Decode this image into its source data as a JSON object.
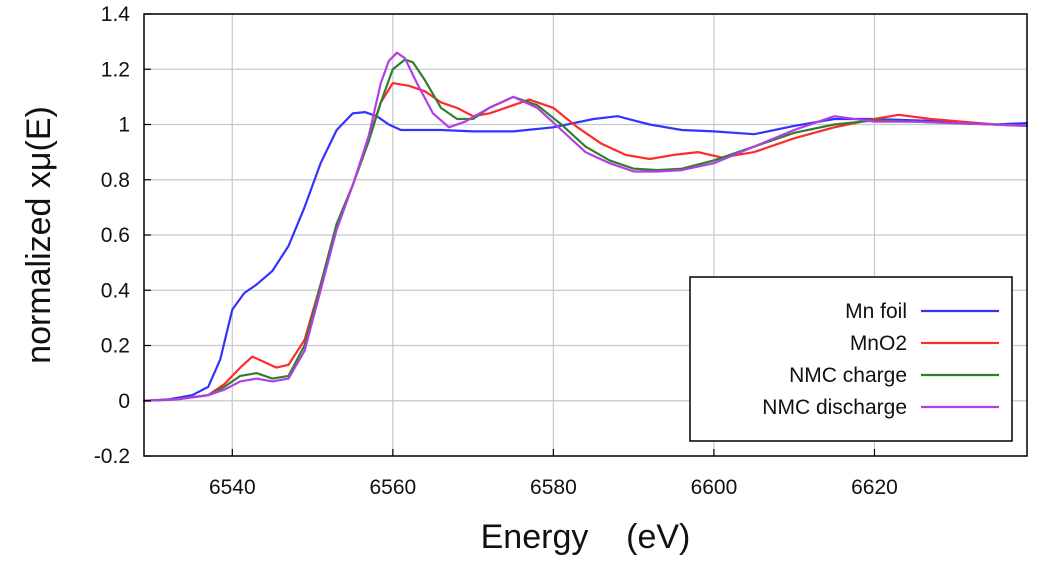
{
  "chart_data": {
    "type": "line",
    "xlabel": "Energy    (eV)",
    "ylabel": "normalized xμ(E)",
    "xlim": [
      6529,
      6639
    ],
    "ylim": [
      -0.2,
      1.4
    ],
    "xticks": [
      6540,
      6560,
      6580,
      6600,
      6620
    ],
    "yticks": [
      -0.2,
      0,
      0.2,
      0.4,
      0.6,
      0.8,
      1,
      1.2,
      1.4
    ],
    "ytick_labels": [
      "-0.2",
      "0",
      "0.2",
      "0.4",
      "0.6",
      "0.8",
      "1",
      "1.2",
      "1.4"
    ],
    "grid": true,
    "legend_position": "bottom-right",
    "series": [
      {
        "name": "Mn foil",
        "color": "#3333ff",
        "x": [
          6529,
          6532,
          6535,
          6537,
          6538.5,
          6540,
          6541.5,
          6543,
          6545,
          6547,
          6549,
          6551,
          6553,
          6555,
          6556.5,
          6558,
          6559.5,
          6561,
          6563,
          6566,
          6570,
          6575,
          6580,
          6585,
          6588,
          6592,
          6596,
          6600,
          6605,
          6610,
          6615,
          6620,
          6625,
          6630,
          6635,
          6639
        ],
        "y": [
          0.0,
          0.005,
          0.02,
          0.05,
          0.15,
          0.33,
          0.39,
          0.42,
          0.47,
          0.56,
          0.7,
          0.86,
          0.98,
          1.04,
          1.045,
          1.03,
          1.0,
          0.98,
          0.98,
          0.98,
          0.975,
          0.975,
          0.99,
          1.02,
          1.03,
          1.0,
          0.98,
          0.975,
          0.965,
          0.995,
          1.02,
          1.02,
          1.015,
          1.01,
          1.0,
          1.005
        ]
      },
      {
        "name": "MnO2",
        "color": "#ff2a2a",
        "x": [
          6529,
          6533,
          6537,
          6539,
          6541,
          6542.5,
          6544,
          6545.5,
          6547,
          6549,
          6551,
          6553,
          6555,
          6557,
          6558.5,
          6560,
          6562,
          6564,
          6566,
          6568,
          6570,
          6572,
          6575,
          6577,
          6580,
          6583,
          6586,
          6589,
          6592,
          6595,
          6598,
          6601,
          6605,
          6610,
          6615,
          6620,
          6623,
          6627,
          6631,
          6635,
          6639
        ],
        "y": [
          0.0,
          0.005,
          0.02,
          0.06,
          0.12,
          0.16,
          0.14,
          0.12,
          0.13,
          0.22,
          0.42,
          0.64,
          0.78,
          0.95,
          1.08,
          1.15,
          1.14,
          1.12,
          1.08,
          1.06,
          1.03,
          1.04,
          1.07,
          1.09,
          1.06,
          0.99,
          0.93,
          0.89,
          0.875,
          0.89,
          0.9,
          0.88,
          0.9,
          0.95,
          0.99,
          1.02,
          1.035,
          1.02,
          1.01,
          1.0,
          0.995
        ]
      },
      {
        "name": "NMC charge",
        "color": "#2f7f2f",
        "x": [
          6529,
          6533,
          6537,
          6539,
          6541,
          6543,
          6545,
          6547,
          6549,
          6551,
          6553,
          6555,
          6557,
          6558.5,
          6560,
          6561.5,
          6562.5,
          6564,
          6566,
          6568,
          6570,
          6572,
          6575,
          6578,
          6581,
          6584,
          6587,
          6590,
          6593,
          6596,
          6600,
          6605,
          6610,
          6615,
          6620,
          6625,
          6630,
          6635,
          6639
        ],
        "y": [
          0.0,
          0.005,
          0.02,
          0.05,
          0.09,
          0.1,
          0.08,
          0.09,
          0.2,
          0.42,
          0.64,
          0.78,
          0.94,
          1.08,
          1.2,
          1.235,
          1.225,
          1.16,
          1.06,
          1.02,
          1.02,
          1.06,
          1.1,
          1.07,
          1.0,
          0.92,
          0.87,
          0.84,
          0.835,
          0.84,
          0.87,
          0.92,
          0.97,
          1.0,
          1.015,
          1.01,
          1.005,
          1.0,
          0.995
        ]
      },
      {
        "name": "NMC discharge",
        "color": "#b23fe6",
        "x": [
          6529,
          6533,
          6537,
          6539,
          6541,
          6543,
          6545,
          6547,
          6549,
          6551,
          6553,
          6555,
          6557,
          6558.5,
          6559.5,
          6560.5,
          6561.5,
          6563,
          6565,
          6567,
          6569,
          6572,
          6575,
          6578,
          6581,
          6584,
          6587,
          6590,
          6593,
          6596,
          6600,
          6605,
          6610,
          6615,
          6620,
          6625,
          6630,
          6635,
          6639
        ],
        "y": [
          0.0,
          0.005,
          0.02,
          0.04,
          0.07,
          0.08,
          0.07,
          0.08,
          0.18,
          0.4,
          0.62,
          0.78,
          0.96,
          1.15,
          1.23,
          1.26,
          1.24,
          1.15,
          1.04,
          0.99,
          1.01,
          1.06,
          1.1,
          1.06,
          0.98,
          0.9,
          0.86,
          0.83,
          0.83,
          0.835,
          0.86,
          0.92,
          0.98,
          1.03,
          1.01,
          1.01,
          1.005,
          1.0,
          0.995
        ]
      }
    ]
  }
}
